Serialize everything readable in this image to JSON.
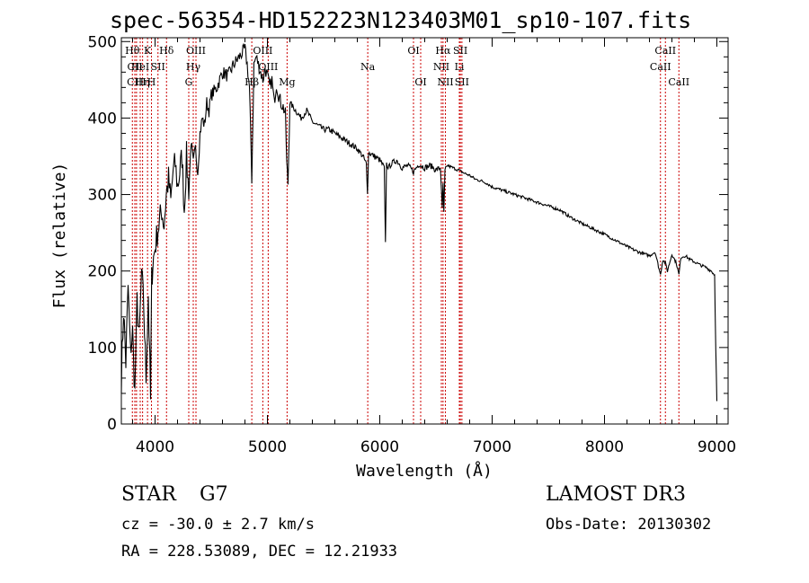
{
  "title": "spec-56354-HD152223N123403M01_sp10-107.fits",
  "object": {
    "class": "STAR",
    "subclass": "G7"
  },
  "redshift_text": "cz = -30.0 ± 2.7 km/s",
  "coords_text": "RA = 228.53089, DEC =  12.21933",
  "survey": "LAMOST DR3",
  "obs_date": "Obs-Date: 20130302",
  "colors": {
    "line": "#000000",
    "marker": "#cc0000"
  },
  "chart_data": {
    "type": "line",
    "title": "spec-56354-HD152223N123403M01_sp10-107.fits",
    "xlabel": "Wavelength (Å)",
    "ylabel": "Flux (relative)",
    "xlim": [
      3700,
      9100
    ],
    "ylim": [
      0,
      505
    ],
    "xticks": [
      4000,
      5000,
      6000,
      7000,
      8000,
      9000
    ],
    "yticks": [
      0,
      100,
      200,
      300,
      400,
      500
    ],
    "series": [
      {
        "name": "flux",
        "x": [
          3700,
          3720,
          3740,
          3760,
          3780,
          3800,
          3820,
          3840,
          3860,
          3880,
          3900,
          3920,
          3940,
          3960,
          3970,
          3980,
          4000,
          4020,
          4040,
          4060,
          4080,
          4100,
          4120,
          4140,
          4160,
          4180,
          4200,
          4220,
          4240,
          4260,
          4280,
          4300,
          4320,
          4340,
          4360,
          4380,
          4400,
          4420,
          4440,
          4460,
          4480,
          4500,
          4550,
          4600,
          4650,
          4700,
          4750,
          4800,
          4820,
          4840,
          4861,
          4880,
          4900,
          4920,
          4940,
          4960,
          4980,
          5000,
          5020,
          5040,
          5060,
          5080,
          5100,
          5120,
          5140,
          5160,
          5172,
          5183,
          5200,
          5250,
          5300,
          5350,
          5400,
          5450,
          5500,
          5550,
          5600,
          5650,
          5700,
          5750,
          5800,
          5850,
          5880,
          5890,
          5896,
          5900,
          5950,
          6000,
          6020,
          6040,
          6050,
          6060,
          6080,
          6100,
          6150,
          6200,
          6250,
          6300,
          6350,
          6400,
          6450,
          6500,
          6540,
          6556,
          6563,
          6570,
          6580,
          6600,
          6650,
          6700,
          6750,
          6800,
          6850,
          6900,
          6950,
          7000,
          7100,
          7200,
          7300,
          7400,
          7500,
          7600,
          7700,
          7800,
          7900,
          8000,
          8100,
          8200,
          8300,
          8400,
          8450,
          8498,
          8520,
          8542,
          8560,
          8600,
          8640,
          8662,
          8680,
          8720,
          8760,
          8800,
          8850,
          8900,
          8950,
          8980,
          8990,
          9000
        ],
        "values": [
          60,
          150,
          80,
          180,
          95,
          120,
          40,
          160,
          110,
          200,
          150,
          60,
          170,
          30,
          190,
          210,
          230,
          250,
          265,
          280,
          260,
          300,
          320,
          290,
          330,
          340,
          310,
          330,
          350,
          280,
          350,
          300,
          370,
          340,
          360,
          330,
          380,
          400,
          390,
          420,
          410,
          430,
          440,
          460,
          455,
          470,
          480,
          490,
          470,
          440,
          320,
          470,
          480,
          470,
          460,
          450,
          465,
          455,
          440,
          450,
          420,
          445,
          430,
          420,
          415,
          405,
          340,
          315,
          420,
          410,
          400,
          410,
          395,
          390,
          385,
          385,
          380,
          375,
          370,
          365,
          360,
          350,
          340,
          300,
          330,
          355,
          350,
          345,
          340,
          335,
          235,
          340,
          335,
          340,
          345,
          335,
          338,
          330,
          340,
          335,
          338,
          332,
          335,
          280,
          315,
          275,
          330,
          338,
          335,
          332,
          328,
          325,
          320,
          318,
          315,
          310,
          305,
          300,
          295,
          290,
          285,
          280,
          270,
          262,
          255,
          248,
          240,
          232,
          225,
          220,
          225,
          195,
          215,
          210,
          200,
          222,
          210,
          195,
          218,
          220,
          215,
          212,
          208,
          205,
          200,
          195,
          100,
          30
        ]
      }
    ],
    "line_markers": [
      {
        "w": 3798,
        "label": "Hθ",
        "row": 1
      },
      {
        "w": 3820,
        "label": "CII",
        "row": 2
      },
      {
        "w": 3835,
        "label": "CIII",
        "row": 3
      },
      {
        "w": 3868,
        "label": "HeI",
        "row": 2
      },
      {
        "w": 3889,
        "label": "Hη",
        "row": 3
      },
      {
        "w": 3933,
        "label": "K",
        "row": 1
      },
      {
        "w": 3968,
        "label": "H",
        "row": 3
      },
      {
        "w": 4026,
        "label": "SII",
        "row": 2
      },
      {
        "w": 4102,
        "label": "Hδ",
        "row": 1
      },
      {
        "w": 4300,
        "label": "G",
        "row": 3
      },
      {
        "w": 4340,
        "label": "Hγ",
        "row": 2
      },
      {
        "w": 4364,
        "label": "OIII",
        "row": 1
      },
      {
        "w": 4861,
        "label": "Hβ",
        "row": 3
      },
      {
        "w": 4959,
        "label": "OIII",
        "row": 1
      },
      {
        "w": 5007,
        "label": "OIII",
        "row": 2
      },
      {
        "w": 5175,
        "label": "Mg",
        "row": 3
      },
      {
        "w": 5893,
        "label": "Na",
        "row": 2
      },
      {
        "w": 6300,
        "label": "OI",
        "row": 1
      },
      {
        "w": 6364,
        "label": "OI",
        "row": 3
      },
      {
        "w": 6548,
        "label": "NII",
        "row": 2
      },
      {
        "w": 6563,
        "label": "Hα",
        "row": 1
      },
      {
        "w": 6584,
        "label": "NII",
        "row": 3
      },
      {
        "w": 6708,
        "label": "Li",
        "row": 2
      },
      {
        "w": 6717,
        "label": "SII",
        "row": 1
      },
      {
        "w": 6731,
        "label": "SII",
        "row": 3
      },
      {
        "w": 8498,
        "label": "CaII",
        "row": 2
      },
      {
        "w": 8542,
        "label": "CaII",
        "row": 1
      },
      {
        "w": 8662,
        "label": "CaII",
        "row": 3
      }
    ]
  }
}
